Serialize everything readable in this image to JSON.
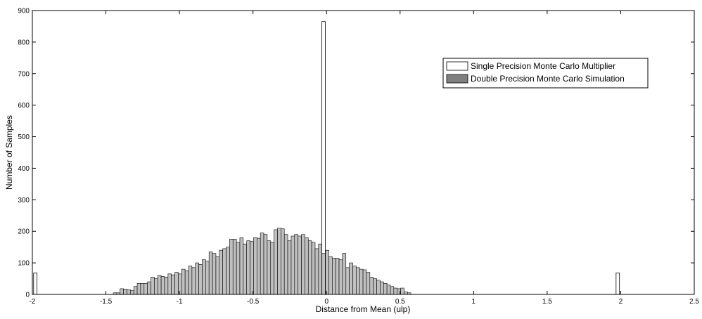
{
  "chart_data": {
    "type": "bar",
    "xlabel": "Distance from Mean (ulp)",
    "ylabel": "Number of Samples",
    "xlim": [
      -2,
      2.5
    ],
    "ylim": [
      0,
      900
    ],
    "xticks": [
      -2,
      -1.5,
      -1,
      -0.5,
      0,
      0.5,
      1,
      1.5,
      2,
      2.5
    ],
    "xtick_labels": [
      "-2",
      "-1.5",
      "-1",
      "-0.5",
      "0",
      "0.5",
      "1",
      "1.5",
      "2",
      "2.5"
    ],
    "yticks": [
      0,
      100,
      200,
      300,
      400,
      500,
      600,
      700,
      800,
      900
    ],
    "ytick_labels": [
      "0",
      "100",
      "200",
      "300",
      "400",
      "500",
      "600",
      "700",
      "800",
      "900"
    ],
    "grid": false,
    "legend": {
      "position": "top-right"
    },
    "series": [
      {
        "name": "Single Precision Monte Carlo Multiplier",
        "color": "#ffffff",
        "bins": [
          {
            "x": -1.98,
            "y": 68
          },
          {
            "x": -0.02,
            "y": 865
          },
          {
            "x": 1.98,
            "y": 68
          }
        ]
      },
      {
        "name": "Double Precision Monte Carlo Simulation",
        "color": "#c0c0c0",
        "legend_color": "#808080",
        "bin_start": -1.45,
        "bin_width": 0.02326,
        "values": [
          5,
          5,
          18,
          17,
          15,
          12,
          25,
          35,
          35,
          35,
          40,
          55,
          50,
          60,
          57,
          55,
          65,
          62,
          70,
          65,
          80,
          75,
          90,
          85,
          100,
          95,
          110,
          105,
          135,
          130,
          120,
          140,
          145,
          150,
          175,
          175,
          165,
          180,
          160,
          170,
          168,
          180,
          178,
          195,
          190,
          170,
          165,
          205,
          210,
          208,
          190,
          170,
          185,
          190,
          185,
          190,
          180,
          170,
          165,
          145,
          160,
          130,
          140,
          120,
          115,
          115,
          110,
          130,
          85,
          100,
          90,
          85,
          80,
          78,
          70,
          55,
          50,
          45,
          40,
          35,
          30,
          25,
          20,
          18,
          20,
          8,
          5
        ]
      }
    ]
  }
}
